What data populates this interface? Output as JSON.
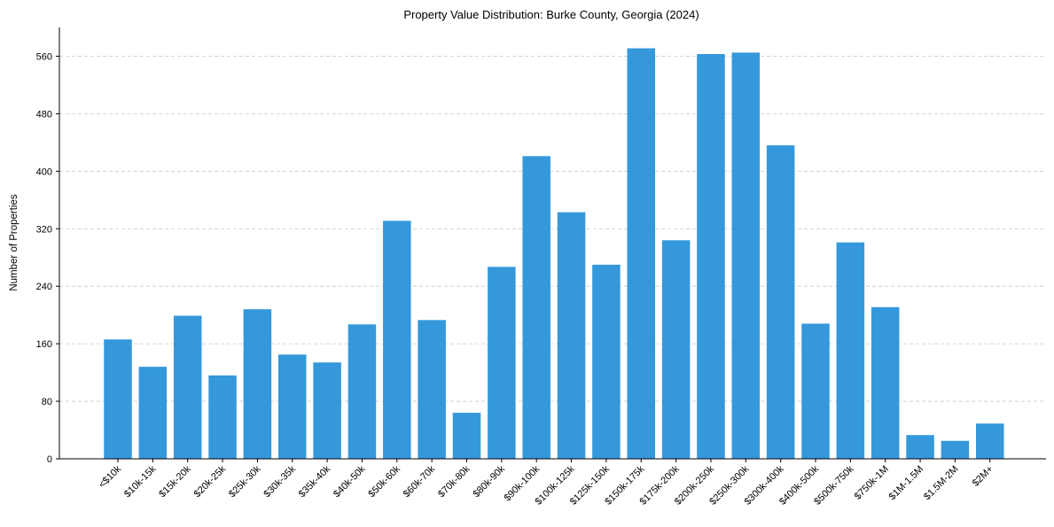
{
  "colors": {
    "bar": "#3498db"
  },
  "chart_data": {
    "type": "bar",
    "title": "Property Value Distribution: Burke County, Georgia (2024)",
    "xlabel": "",
    "ylabel": "Number of Properties",
    "ylim": [
      0,
      600
    ],
    "yticks": [
      0,
      80,
      160,
      240,
      320,
      400,
      480,
      560
    ],
    "grid": "y-dashed",
    "categories": [
      "<$10k",
      "$10k-15k",
      "$15k-20k",
      "$20k-25k",
      "$25k-30k",
      "$30k-35k",
      "$35k-40k",
      "$40k-50k",
      "$50k-60k",
      "$60k-70k",
      "$70k-80k",
      "$80k-90k",
      "$90k-100k",
      "$100k-125k",
      "$125k-150k",
      "$150k-175k",
      "$175k-200k",
      "$200k-250k",
      "$250k-300k",
      "$300k-400k",
      "$400k-500k",
      "$500k-750k",
      "$750k-1M",
      "$1M-1.5M",
      "$1.5M-2M",
      "$2M+"
    ],
    "values": [
      166,
      128,
      199,
      116,
      208,
      145,
      134,
      187,
      331,
      193,
      64,
      267,
      421,
      343,
      270,
      571,
      304,
      563,
      565,
      436,
      188,
      301,
      211,
      33,
      25,
      49
    ]
  }
}
